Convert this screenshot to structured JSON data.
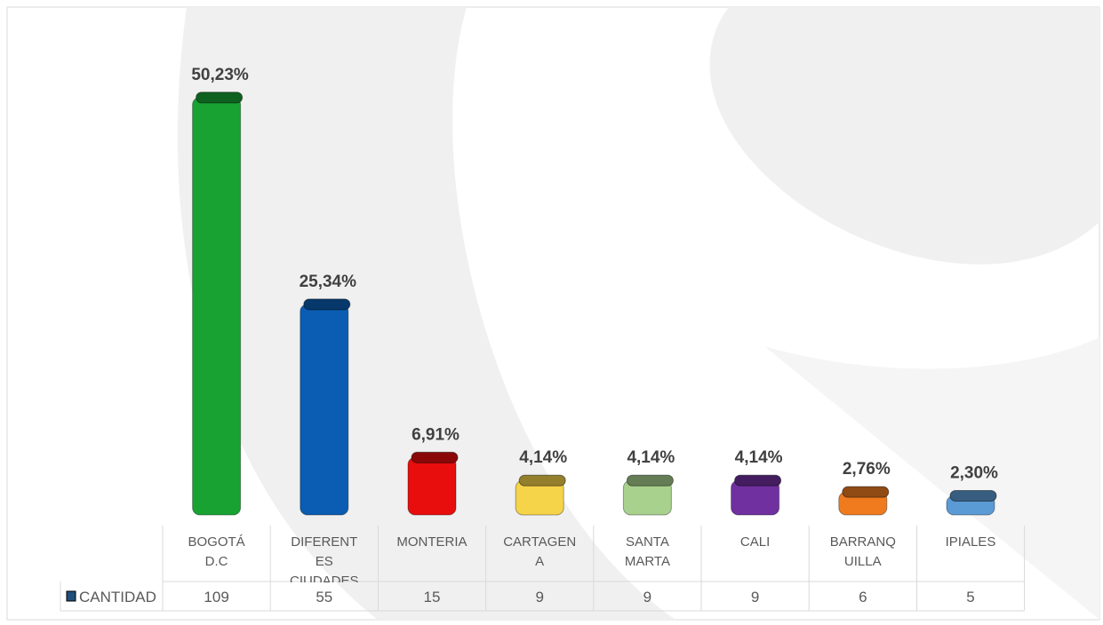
{
  "chart_data": {
    "type": "bar",
    "categories": [
      "BOGOTÁ D.C",
      "DIFERENTES CIUDADES",
      "MONTERIA",
      "CARTAGENA",
      "SANTA MARTA",
      "CALI",
      "BARRANQUILLA",
      "IPIALES"
    ],
    "values": [
      50.23,
      25.34,
      6.91,
      4.14,
      4.14,
      4.14,
      2.76,
      2.3
    ],
    "value_labels": [
      "50,23%",
      "25,34%",
      "6,91%",
      "4,14%",
      "4,14%",
      "4,14%",
      "2,76%",
      "2,30%"
    ],
    "colors": [
      "#17a232",
      "#0a5db3",
      "#e80e0e",
      "#f6d449",
      "#a9d18e",
      "#7030a0",
      "#f07b1f",
      "#5b9bd5"
    ],
    "data_table": {
      "row_label": "CANTIDAD",
      "values": [
        109,
        55,
        15,
        9,
        9,
        9,
        6,
        5
      ]
    }
  }
}
